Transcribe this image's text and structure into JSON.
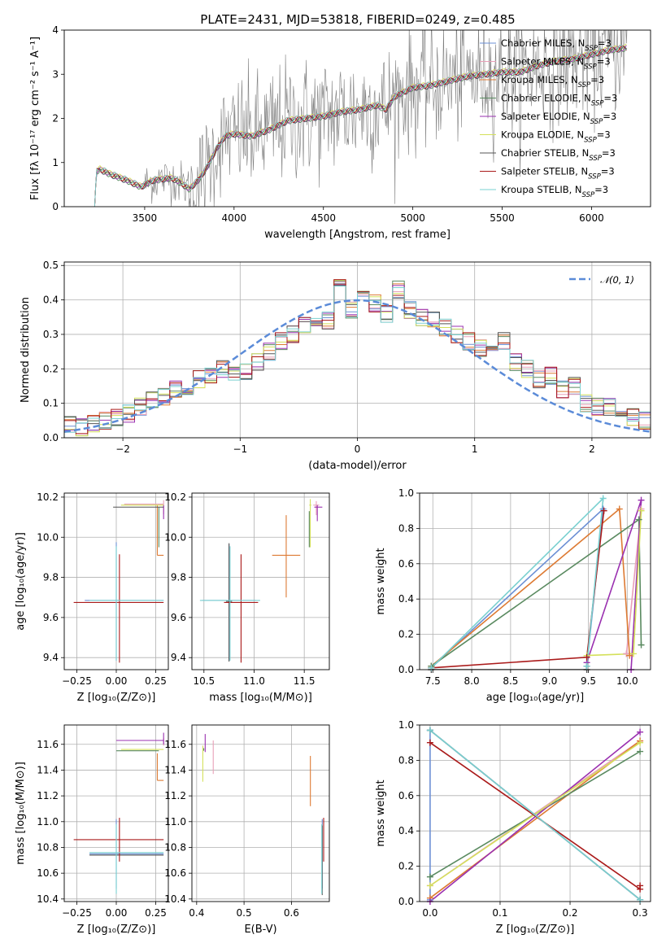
{
  "title": "PLATE=2431, MJD=53818, FIBERID=0249, z=0.485",
  "colors": {
    "Chabrier MILES": "#6b8fd4",
    "Salpeter MILES": "#e8a0b8",
    "Kroupa MILES": "#dd7a33",
    "Chabrier ELODIE": "#5a8a60",
    "Salpeter ELODIE": "#9a30b0",
    "Kroupa ELODIE": "#d4e05a",
    "Chabrier STELIB": "#555555",
    "Salpeter STELIB": "#aa1a1a",
    "Kroupa STELIB": "#7ad0d0"
  },
  "legend_models": [
    {
      "key": "Chabrier MILES",
      "prefix": "Chabrier MILES, N",
      "sub": "SSP",
      "suffix": "=3"
    },
    {
      "key": "Salpeter MILES",
      "prefix": "Salpeter MILES, N",
      "sub": "SSP",
      "suffix": "=3"
    },
    {
      "key": "Kroupa MILES",
      "prefix": "Kroupa MILES, N",
      "sub": "SSP",
      "suffix": "=3"
    },
    {
      "key": "Chabrier ELODIE",
      "prefix": "Chabrier ELODIE, N",
      "sub": "SSP",
      "suffix": "=3"
    },
    {
      "key": "Salpeter ELODIE",
      "prefix": "Salpeter ELODIE, N",
      "sub": "SSP",
      "suffix": "=3"
    },
    {
      "key": "Kroupa ELODIE",
      "prefix": "Kroupa ELODIE, N",
      "sub": "SSP",
      "suffix": "=3"
    },
    {
      "key": "Chabrier STELIB",
      "prefix": "Chabrier STELIB, N",
      "sub": "SSP",
      "suffix": "=3"
    },
    {
      "key": "Salpeter STELIB",
      "prefix": "Salpeter STELIB, N",
      "sub": "SSP",
      "suffix": "=3"
    },
    {
      "key": "Kroupa STELIB",
      "prefix": "Kroupa STELIB, N",
      "sub": "SSP",
      "suffix": "=3"
    }
  ],
  "chart_data": [
    {
      "id": "spectrum",
      "type": "line",
      "xlabel": "wavelength [Angstrom, rest frame]",
      "ylabel": "Flux [fλ 10⁻¹⁷ erg cm⁻² s⁻¹ A⁻¹]",
      "xlim": [
        3050,
        6330
      ],
      "ylim": [
        0,
        4
      ],
      "xticks": [
        3500,
        4000,
        4500,
        5000,
        5500,
        6000
      ],
      "yticks": [
        0,
        1,
        2,
        3,
        4
      ],
      "data_color": "#7f7f7f",
      "model_envelope": {
        "x": [
          3220,
          3230,
          3250,
          3300,
          3400,
          3480,
          3500,
          3550,
          3650,
          3700,
          3750,
          3800,
          3850,
          3900,
          3950,
          4000,
          4100,
          4200,
          4300,
          4400,
          4500,
          4600,
          4700,
          4800,
          4850,
          4900,
          5000,
          5100,
          5200,
          5300,
          5400,
          5500,
          5600,
          5700,
          5800,
          5900,
          6000,
          6100,
          6200
        ],
        "y": [
          0.0,
          0.8,
          0.85,
          0.75,
          0.6,
          0.45,
          0.5,
          0.6,
          0.65,
          0.55,
          0.4,
          0.6,
          0.9,
          1.3,
          1.6,
          1.65,
          1.6,
          1.75,
          1.95,
          2.0,
          2.05,
          2.15,
          2.2,
          2.3,
          2.2,
          2.5,
          2.7,
          2.75,
          2.85,
          2.95,
          3.0,
          3.05,
          3.05,
          3.2,
          3.3,
          3.35,
          3.45,
          3.55,
          3.6
        ]
      },
      "observed_range": [
        3500,
        6200
      ]
    },
    {
      "id": "residuals",
      "type": "histogram",
      "xlabel": "(data-model)/error",
      "ylabel": "Normed distribution",
      "xlim": [
        -2.5,
        2.5
      ],
      "ylim": [
        0,
        0.51
      ],
      "xticks": [
        -2,
        -1,
        0,
        1,
        2
      ],
      "yticks": [
        0,
        0.1,
        0.2,
        0.3,
        0.4,
        0.5
      ],
      "bin_width": 0.1,
      "bin_start": -2.5,
      "legend": "𝒩(0, 1)",
      "reference_curve": "normal(0,1)",
      "counts": [
        0.04,
        0.03,
        0.04,
        0.05,
        0.06,
        0.07,
        0.09,
        0.11,
        0.12,
        0.14,
        0.15,
        0.17,
        0.18,
        0.2,
        0.18,
        0.19,
        0.22,
        0.25,
        0.28,
        0.3,
        0.33,
        0.35,
        0.34,
        0.45,
        0.37,
        0.4,
        0.39,
        0.36,
        0.43,
        0.37,
        0.35,
        0.34,
        0.32,
        0.3,
        0.28,
        0.26,
        0.25,
        0.28,
        0.22,
        0.2,
        0.17,
        0.18,
        0.14,
        0.15,
        0.1,
        0.09,
        0.09,
        0.08,
        0.06,
        0.05
      ]
    },
    {
      "id": "z-age",
      "type": "errorbar",
      "xlabel": "Z [log₁₀(Z/Z⊙)]",
      "ylabel": "age  [log₁₀(age/yr)]",
      "xlim": [
        -0.33,
        0.33
      ],
      "ylim": [
        9.34,
        10.22
      ],
      "xticks": [
        -0.25,
        0.0,
        0.25
      ],
      "yticks": [
        9.4,
        9.6,
        9.8,
        10.0,
        10.2
      ],
      "points": [
        {
          "model": "Chabrier MILES",
          "x": 0.0,
          "xerr": [
            0.2,
            0.3
          ],
          "y": 9.685,
          "yerr": [
            0.3,
            0.29
          ]
        },
        {
          "model": "Salpeter MILES",
          "x": 0.3,
          "xerr": [
            0.25,
            0.0
          ],
          "y": 10.165,
          "yerr": [
            0.05,
            0.02
          ]
        },
        {
          "model": "Kroupa MILES",
          "x": 0.26,
          "xerr": [
            0.0,
            0.04
          ],
          "y": 9.91,
          "yerr": [
            0.0,
            0.25
          ]
        },
        {
          "model": "Chabrier ELODIE",
          "x": 0.27,
          "xerr": [
            0.0,
            0.0
          ],
          "y": 10.06,
          "yerr": [
            0.11,
            0.09
          ]
        },
        {
          "model": "Salpeter ELODIE",
          "x": 0.3,
          "xerr": [
            0.0,
            0.0
          ],
          "y": 10.15,
          "yerr": [
            0.06,
            0.01
          ]
        },
        {
          "model": "Kroupa ELODIE",
          "x": 0.3,
          "xerr": [
            0.27,
            0.0
          ],
          "y": 10.16,
          "yerr": [
            0.0,
            0.0
          ]
        },
        {
          "model": "Chabrier STELIB",
          "x": 0.0,
          "xerr": [
            0.02,
            0.3
          ],
          "y": 10.15,
          "yerr": [
            0.0,
            0.0
          ]
        },
        {
          "model": "Salpeter STELIB",
          "x": 0.02,
          "xerr": [
            0.29,
            0.28
          ],
          "y": 9.675,
          "yerr": [
            0.3,
            0.24
          ]
        },
        {
          "model": "Kroupa STELIB",
          "x": 0.0,
          "xerr": [
            0.17,
            0.3
          ],
          "y": 9.685,
          "yerr": [
            0.3,
            0.27
          ]
        }
      ]
    },
    {
      "id": "mass-age",
      "type": "errorbar",
      "xlabel": "mass [log₁₀(M/M⊙)]",
      "ylabel": "",
      "xlim": [
        10.38,
        11.75
      ],
      "ylim": [
        9.34,
        10.22
      ],
      "xticks": [
        10.5,
        11.0,
        11.5
      ],
      "yticks": [
        9.4,
        9.6,
        9.8,
        10.0,
        10.2
      ],
      "points": [
        {
          "model": "Chabrier MILES",
          "x": 10.75,
          "xerr": [
            0.27,
            0.27
          ],
          "y": 9.685,
          "yerr": [
            0.3,
            0.28
          ]
        },
        {
          "model": "Salpeter MILES",
          "x": 11.62,
          "xerr": [
            0.03,
            0.03
          ],
          "y": 10.16,
          "yerr": [
            0.05,
            0.02
          ]
        },
        {
          "model": "Kroupa MILES",
          "x": 11.32,
          "xerr": [
            0.14,
            0.14
          ],
          "y": 9.91,
          "yerr": [
            0.21,
            0.2
          ]
        },
        {
          "model": "Chabrier ELODIE",
          "x": 11.55,
          "xerr": [
            0.0,
            0.0
          ],
          "y": 10.05,
          "yerr": [
            0.1,
            0.08
          ]
        },
        {
          "model": "Salpeter ELODIE",
          "x": 11.63,
          "xerr": [
            0.03,
            0.05
          ],
          "y": 10.15,
          "yerr": [
            0.07,
            0.01
          ]
        },
        {
          "model": "Kroupa ELODIE",
          "x": 11.56,
          "xerr": [
            0.01,
            0.01
          ],
          "y": 10.16,
          "yerr": [
            0.21,
            0.03
          ]
        },
        {
          "model": "Chabrier STELIB",
          "x": 10.75,
          "xerr": [
            0.03,
            0.03
          ],
          "y": 9.68,
          "yerr": [
            0.3,
            0.29
          ]
        },
        {
          "model": "Salpeter STELIB",
          "x": 10.87,
          "xerr": [
            0.17,
            0.17
          ],
          "y": 9.675,
          "yerr": [
            0.3,
            0.24
          ]
        },
        {
          "model": "Kroupa STELIB",
          "x": 10.76,
          "xerr": [
            0.3,
            0.3
          ],
          "y": 9.685,
          "yerr": [
            0.3,
            0.27
          ]
        }
      ]
    },
    {
      "id": "age-weight",
      "type": "line",
      "xlabel": "age  [log₁₀(age/yr)]",
      "ylabel": "mass weight",
      "xlim": [
        7.33,
        10.3
      ],
      "ylim": [
        0,
        1
      ],
      "xticks": [
        7.5,
        8.0,
        8.5,
        9.0,
        9.5,
        10.0
      ],
      "yticks": [
        0,
        0.2,
        0.4,
        0.6,
        0.8,
        1.0
      ],
      "series": [
        {
          "model": "Chabrier MILES",
          "x": [
            7.48,
            9.69,
            9.48
          ],
          "y": [
            0.01,
            0.91,
            0.02
          ]
        },
        {
          "model": "Salpeter MILES",
          "x": [
            9.99,
            10.18,
            9.99
          ],
          "y": [
            0.09,
            0.91,
            0.09
          ]
        },
        {
          "model": "Kroupa MILES",
          "x": [
            7.48,
            9.9,
            10.03
          ],
          "y": [
            0.02,
            0.91,
            0.08
          ]
        },
        {
          "model": "Chabrier ELODIE",
          "x": [
            7.48,
            10.15,
            10.18
          ],
          "y": [
            0.02,
            0.85,
            0.14
          ]
        },
        {
          "model": "Salpeter ELODIE",
          "x": [
            9.48,
            10.18,
            10.05
          ],
          "y": [
            0.04,
            0.96,
            0.0
          ]
        },
        {
          "model": "Kroupa ELODIE",
          "x": [
            9.48,
            10.08,
            10.18
          ],
          "y": [
            0.08,
            0.09,
            0.9
          ]
        },
        {
          "model": "Chabrier STELIB",
          "x": [
            7.48,
            9.48,
            9.48
          ],
          "y": [
            0.0,
            0.0,
            0.02
          ]
        },
        {
          "model": "Salpeter STELIB",
          "x": [
            7.48,
            9.48,
            9.7
          ],
          "y": [
            0.01,
            0.07,
            0.9
          ]
        },
        {
          "model": "Kroupa STELIB",
          "x": [
            7.48,
            9.69,
            9.48
          ],
          "y": [
            0.01,
            0.97,
            0.02
          ]
        }
      ]
    },
    {
      "id": "z-mass",
      "type": "errorbar",
      "xlabel": "Z [log₁₀(Z/Z⊙)]",
      "ylabel": "mass [log₁₀(M/M⊙)]",
      "xlim": [
        -0.33,
        0.33
      ],
      "ylim": [
        10.38,
        11.75
      ],
      "xticks": [
        -0.25,
        0.0,
        0.25
      ],
      "yticks": [
        10.4,
        10.6,
        10.8,
        11.0,
        11.2,
        11.4,
        11.6
      ],
      "points": [
        {
          "model": "Chabrier MILES",
          "x": 0.0,
          "xerr": [
            0.17,
            0.3
          ],
          "y": 10.75,
          "yerr": [
            0.27,
            0.27
          ]
        },
        {
          "model": "Salpeter MILES",
          "x": 0.3,
          "xerr": [
            0.0,
            0.0
          ],
          "y": 11.62,
          "yerr": [
            0.03,
            0.03
          ]
        },
        {
          "model": "Kroupa MILES",
          "x": 0.26,
          "xerr": [
            0.0,
            0.04
          ],
          "y": 11.32,
          "yerr": [
            0.0,
            0.21
          ]
        },
        {
          "model": "Chabrier ELODIE",
          "x": 0.27,
          "xerr": [
            0.27,
            0.0
          ],
          "y": 11.55,
          "yerr": [
            0.0,
            0.0
          ]
        },
        {
          "model": "Salpeter ELODIE",
          "x": 0.3,
          "xerr": [
            0.3,
            0.0
          ],
          "y": 11.63,
          "yerr": [
            0.03,
            0.06
          ]
        },
        {
          "model": "Kroupa ELODIE",
          "x": 0.3,
          "xerr": [
            0.27,
            0.0
          ],
          "y": 11.56,
          "yerr": [
            0.0,
            0.0
          ]
        },
        {
          "model": "Chabrier STELIB",
          "x": 0.0,
          "xerr": [
            0.17,
            0.3
          ],
          "y": 10.74,
          "yerr": [
            0.0,
            0.0
          ]
        },
        {
          "model": "Salpeter STELIB",
          "x": 0.02,
          "xerr": [
            0.29,
            0.28
          ],
          "y": 10.86,
          "yerr": [
            0.17,
            0.17
          ]
        },
        {
          "model": "Kroupa STELIB",
          "x": 0.0,
          "xerr": [
            0.17,
            0.3
          ],
          "y": 10.76,
          "yerr": [
            0.32,
            0.22
          ]
        }
      ]
    },
    {
      "id": "ebv-mass",
      "type": "errorbar",
      "xlabel": "E(B-V)",
      "ylabel": "",
      "xlim": [
        0.39,
        0.68
      ],
      "ylim": [
        10.38,
        11.75
      ],
      "xticks": [
        0.4,
        0.5,
        0.6
      ],
      "yticks": [
        10.4,
        10.6,
        10.8,
        11.0,
        11.2,
        11.4,
        11.6
      ],
      "points": [
        {
          "model": "Chabrier MILES",
          "x": 0.665,
          "xerr": [
            0,
            0
          ],
          "y": 10.75,
          "yerr": [
            0.27,
            0.27
          ]
        },
        {
          "model": "Salpeter MILES",
          "x": 0.435,
          "xerr": [
            0,
            0
          ],
          "y": 11.5,
          "yerr": [
            0.13,
            0.13
          ]
        },
        {
          "model": "Kroupa MILES",
          "x": 0.64,
          "xerr": [
            0,
            0
          ],
          "y": 11.32,
          "yerr": [
            0.2,
            0.19
          ]
        },
        {
          "model": "Chabrier ELODIE",
          "x": 0.415,
          "xerr": [
            0,
            0
          ],
          "y": 11.55,
          "yerr": [
            0.0,
            0.02
          ]
        },
        {
          "model": "Salpeter ELODIE",
          "x": 0.418,
          "xerr": [
            0,
            0
          ],
          "y": 11.6,
          "yerr": [
            0.06,
            0.08
          ]
        },
        {
          "model": "Kroupa ELODIE",
          "x": 0.413,
          "xerr": [
            0,
            0
          ],
          "y": 11.45,
          "yerr": [
            0.14,
            0.14
          ]
        },
        {
          "model": "Chabrier STELIB",
          "x": 0.665,
          "xerr": [
            0,
            0
          ],
          "y": 10.7,
          "yerr": [
            0.27,
            0.27
          ]
        },
        {
          "model": "Salpeter STELIB",
          "x": 0.668,
          "xerr": [
            0,
            0
          ],
          "y": 10.86,
          "yerr": [
            0.17,
            0.17
          ]
        },
        {
          "model": "Kroupa STELIB",
          "x": 0.664,
          "xerr": [
            0,
            0
          ],
          "y": 10.76,
          "yerr": [
            0.32,
            0.22
          ]
        }
      ]
    },
    {
      "id": "z-weight",
      "type": "line",
      "xlabel": "Z [log₁₀(Z/Z⊙)]",
      "ylabel": "mass weight",
      "xlim": [
        -0.015,
        0.315
      ],
      "ylim": [
        0,
        1
      ],
      "xticks": [
        0.0,
        0.1,
        0.2,
        0.3
      ],
      "yticks": [
        0,
        0.2,
        0.4,
        0.6,
        0.8,
        1.0
      ],
      "series": [
        {
          "model": "Chabrier MILES",
          "x": [
            0.0,
            0.0,
            0.3
          ],
          "y": [
            0.01,
            0.97,
            0.01
          ]
        },
        {
          "model": "Salpeter MILES",
          "x": [
            0.0,
            0.3
          ],
          "y": [
            0.09,
            0.91
          ]
        },
        {
          "model": "Kroupa MILES",
          "x": [
            0.0,
            0.3
          ],
          "y": [
            0.02,
            0.91
          ]
        },
        {
          "model": "Chabrier ELODIE",
          "x": [
            0.0,
            0.3
          ],
          "y": [
            0.14,
            0.85
          ]
        },
        {
          "model": "Salpeter ELODIE",
          "x": [
            0.0,
            0.3
          ],
          "y": [
            0.0,
            0.96
          ]
        },
        {
          "model": "Kroupa ELODIE",
          "x": [
            0.0,
            0.3
          ],
          "y": [
            0.09,
            0.9
          ]
        },
        {
          "model": "Chabrier STELIB",
          "x": [
            0.0,
            0.3
          ],
          "y": [
            0.97,
            0.01
          ]
        },
        {
          "model": "Salpeter STELIB",
          "x": [
            0.0,
            0.3,
            0.3
          ],
          "y": [
            0.9,
            0.07,
            0.09
          ]
        },
        {
          "model": "Kroupa STELIB",
          "x": [
            0.0,
            0.3
          ],
          "y": [
            0.97,
            0.01
          ]
        }
      ]
    }
  ]
}
